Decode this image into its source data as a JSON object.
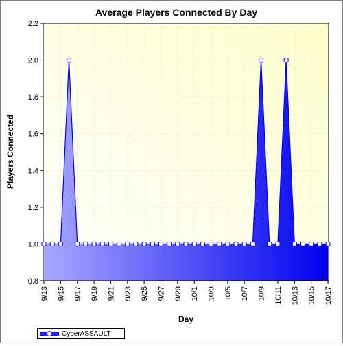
{
  "chart_data": {
    "type": "area",
    "title": "Average Players Connected By Day",
    "xlabel": "Day",
    "ylabel": "Players Connected",
    "ylim": [
      0.8,
      2.2
    ],
    "y_ticks": [
      "0.8",
      "1.0",
      "1.2",
      "1.4",
      "1.6",
      "1.8",
      "2.0",
      "2.2"
    ],
    "x_tick_labels": [
      "9/13",
      "9/15",
      "9/17",
      "9/19",
      "9/21",
      "9/23",
      "9/25",
      "9/27",
      "9/29",
      "10/1",
      "10/3",
      "10/5",
      "10/7",
      "10/9",
      "10/11",
      "10/13",
      "10/15",
      "10/17"
    ],
    "grid": true,
    "legend_position": "bottom-left",
    "series": [
      {
        "name": "CyberASSAULT",
        "color": "#0000ff",
        "x": [
          "9/13",
          "9/14",
          "9/15",
          "9/16",
          "9/17",
          "9/18",
          "9/19",
          "9/20",
          "9/21",
          "9/22",
          "9/23",
          "9/24",
          "9/25",
          "9/26",
          "9/27",
          "9/28",
          "9/29",
          "9/30",
          "10/1",
          "10/2",
          "10/3",
          "10/4",
          "10/5",
          "10/6",
          "10/7",
          "10/8",
          "10/9",
          "10/10",
          "10/11",
          "10/12",
          "10/13",
          "10/14",
          "10/15",
          "10/16",
          "10/17"
        ],
        "values": [
          1.0,
          1.0,
          1.0,
          2.0,
          1.0,
          1.0,
          1.0,
          1.0,
          1.0,
          1.0,
          1.0,
          1.0,
          1.0,
          1.0,
          1.0,
          1.0,
          1.0,
          1.0,
          1.0,
          1.0,
          1.0,
          1.0,
          1.0,
          1.0,
          1.0,
          1.0,
          2.0,
          1.0,
          1.0,
          2.0,
          1.0,
          1.0,
          1.0,
          1.0,
          1.0
        ]
      }
    ]
  }
}
